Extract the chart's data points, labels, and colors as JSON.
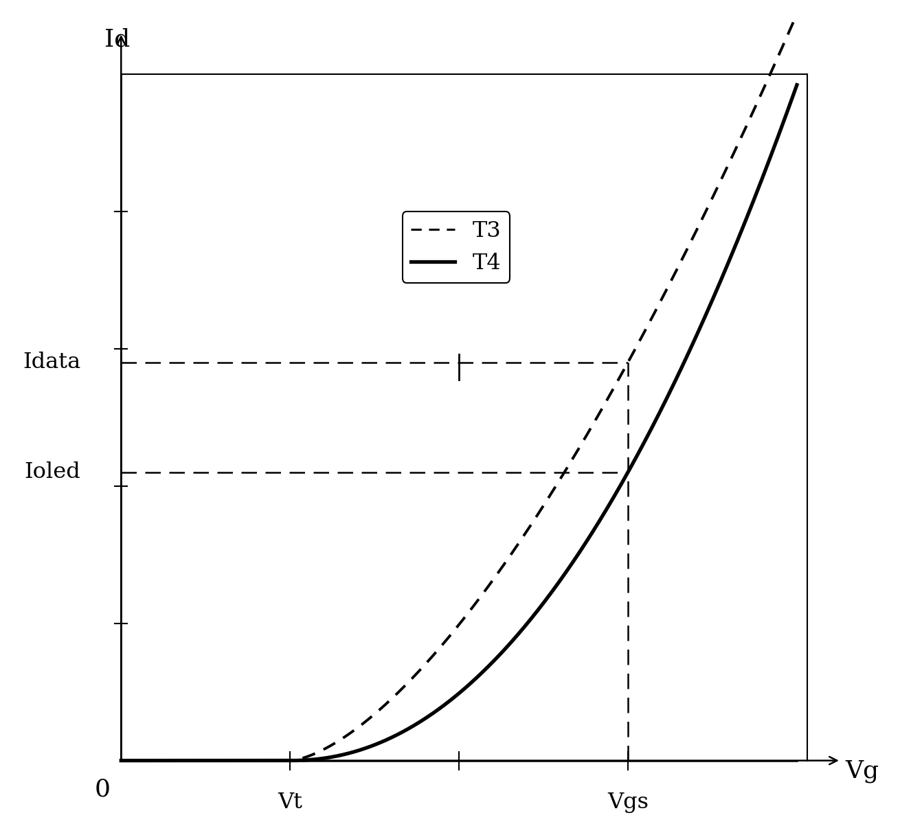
{
  "ylabel": "Id",
  "xlabel": "Vg",
  "origin_label": "0",
  "vt_label": "Vt",
  "vgs_label": "Vgs",
  "idata_label": "Idata",
  "ioled_label": "Ioled",
  "legend_t3": "T3",
  "legend_t4": "T4",
  "xlim": [
    0,
    10
  ],
  "ylim": [
    0,
    10
  ],
  "vt_x": 2.5,
  "vgs_x": 7.5,
  "idata_y": 5.8,
  "ioled_y": 4.2,
  "bg_color": "#ffffff",
  "curve_color": "#000000",
  "fontsize_label": 26,
  "fontsize_tick": 23,
  "t3_exponent": 1.55,
  "t4_exponent": 2.1
}
